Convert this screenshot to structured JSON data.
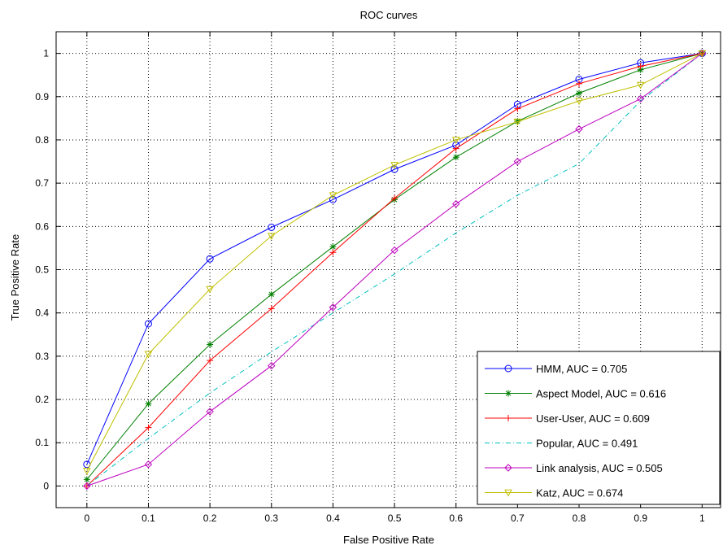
{
  "chart_data": {
    "type": "line",
    "title": "ROC curves",
    "xlabel": "False Positive Rate",
    "ylabel": "True Positive Rate",
    "xlim": [
      -0.05,
      1.03
    ],
    "ylim": [
      -0.05,
      1.05
    ],
    "xticks": [
      "0",
      "0.1",
      "0.2",
      "0.3",
      "0.4",
      "0.5",
      "0.6",
      "0.7",
      "0.8",
      "0.9",
      "1"
    ],
    "yticks": [
      "0",
      "0.1",
      "0.2",
      "0.3",
      "0.4",
      "0.5",
      "0.6",
      "0.7",
      "0.8",
      "0.9",
      "1"
    ],
    "grid": true,
    "legend_position": "bottom-right",
    "series": [
      {
        "name": "HMM, AUC = 0.705",
        "color": "#0000ff",
        "marker": "circle",
        "dash": "solid",
        "x": [
          0,
          0.1,
          0.2,
          0.3,
          0.4,
          0.5,
          0.6,
          0.7,
          0.8,
          0.9,
          1
        ],
        "y": [
          0.05,
          0.375,
          0.525,
          0.598,
          0.662,
          0.732,
          0.788,
          0.882,
          0.94,
          0.978,
          1
        ]
      },
      {
        "name": "Aspect Model, AUC = 0.616",
        "color": "#008000",
        "marker": "asterisk",
        "dash": "solid",
        "x": [
          0,
          0.1,
          0.2,
          0.3,
          0.4,
          0.5,
          0.6,
          0.7,
          0.8,
          0.9,
          1
        ],
        "y": [
          0.015,
          0.19,
          0.327,
          0.443,
          0.553,
          0.662,
          0.76,
          0.843,
          0.908,
          0.962,
          1
        ]
      },
      {
        "name": "User-User, AUC = 0.609",
        "color": "#ff0000",
        "marker": "plus",
        "dash": "solid",
        "x": [
          0,
          0.1,
          0.2,
          0.3,
          0.4,
          0.5,
          0.6,
          0.7,
          0.8,
          0.9,
          1
        ],
        "y": [
          0.0,
          0.135,
          0.29,
          0.41,
          0.54,
          0.665,
          0.78,
          0.872,
          0.93,
          0.97,
          1
        ]
      },
      {
        "name": "Popular, AUC = 0.491",
        "color": "#00bfbf",
        "marker": "none",
        "dash": "dashdot",
        "x": [
          0,
          0.1,
          0.2,
          0.3,
          0.4,
          0.5,
          0.6,
          0.7,
          0.8,
          0.9,
          1
        ],
        "y": [
          0.0,
          0.11,
          0.215,
          0.31,
          0.4,
          0.49,
          0.585,
          0.672,
          0.745,
          0.89,
          1
        ]
      },
      {
        "name": "Link analysis, AUC = 0.505",
        "color": "#bf00bf",
        "marker": "diamond",
        "dash": "solid",
        "x": [
          0,
          0.1,
          0.2,
          0.3,
          0.4,
          0.5,
          0.6,
          0.7,
          0.8,
          0.9,
          1
        ],
        "y": [
          0.0,
          0.05,
          0.172,
          0.278,
          0.413,
          0.545,
          0.652,
          0.75,
          0.825,
          0.895,
          1
        ]
      },
      {
        "name": "Katz, AUC = 0.674",
        "color": "#bfbf00",
        "marker": "triangle-down",
        "dash": "solid",
        "x": [
          0,
          0.1,
          0.2,
          0.3,
          0.4,
          0.5,
          0.6,
          0.7,
          0.8,
          0.9,
          1
        ],
        "y": [
          0.035,
          0.305,
          0.455,
          0.578,
          0.672,
          0.742,
          0.8,
          0.842,
          0.89,
          0.927,
          1
        ]
      }
    ]
  }
}
